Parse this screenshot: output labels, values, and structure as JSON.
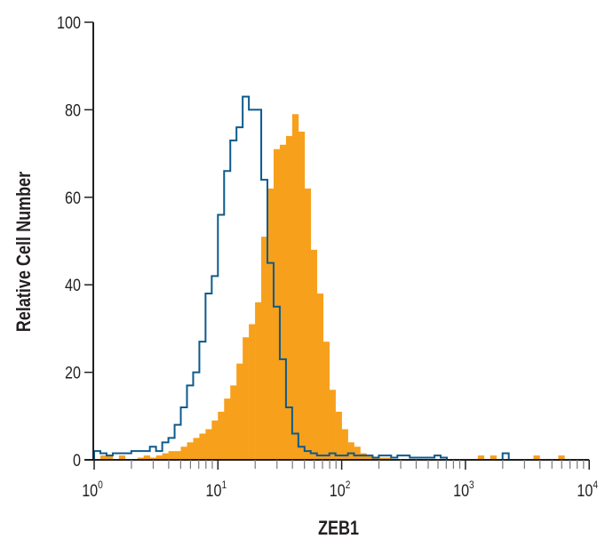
{
  "chart_data": {
    "type": "histogram",
    "title": "",
    "xlabel": "ZEB1",
    "ylabel": "Relative Cell Number",
    "x_scale": "log",
    "xlim": [
      1,
      10000
    ],
    "ylim": [
      0,
      100
    ],
    "x_ticks": [
      {
        "base": "10",
        "exp": "0"
      },
      {
        "base": "10",
        "exp": "1"
      },
      {
        "base": "10",
        "exp": "2"
      },
      {
        "base": "10",
        "exp": "3"
      },
      {
        "base": "10",
        "exp": "4"
      }
    ],
    "y_ticks": [
      "0",
      "20",
      "40",
      "60",
      "80",
      "100"
    ],
    "grid": false,
    "bin_log10_width": 0.05,
    "bin_log10_start": 0,
    "series": [
      {
        "style": "filled",
        "color": "#f7a01c",
        "values": [
          0,
          1,
          1,
          0,
          1,
          0,
          0,
          0.5,
          1,
          0.5,
          1,
          1.5,
          2,
          2,
          3,
          4,
          5,
          6,
          7,
          9,
          11,
          14,
          17,
          22,
          28,
          31,
          36,
          51,
          62,
          71,
          72,
          74,
          79,
          75,
          62,
          48,
          38,
          27,
          16,
          11,
          7,
          4,
          3,
          1.5,
          1,
          0.5,
          0.5,
          0.5,
          0,
          0,
          0,
          0,
          0,
          0,
          0,
          0,
          0,
          0,
          0,
          0,
          0,
          0,
          1,
          0,
          1,
          0,
          0,
          0,
          0,
          0,
          0,
          1,
          0,
          0,
          0,
          1,
          0,
          0,
          0,
          0
        ]
      },
      {
        "style": "outline",
        "color": "#0d5a8c",
        "values": [
          2,
          1.5,
          1,
          1.5,
          1.5,
          1.5,
          2,
          2,
          2,
          3,
          2,
          4,
          5,
          8,
          12,
          17,
          20,
          27,
          38,
          42,
          56,
          66,
          73,
          76,
          83,
          80,
          80,
          64,
          45,
          35,
          23,
          12,
          6,
          3,
          2,
          1.5,
          1,
          1,
          1.5,
          1,
          1,
          1.5,
          1,
          1,
          1,
          0.5,
          1,
          1,
          0.5,
          1,
          1,
          0.5,
          0.5,
          0.5,
          0.5,
          1,
          0.5,
          0,
          0,
          0,
          0,
          0,
          0,
          0,
          0,
          0,
          1.5,
          0,
          0,
          0,
          0,
          0,
          0,
          0,
          0,
          0,
          0,
          0,
          0,
          0
        ]
      }
    ]
  }
}
